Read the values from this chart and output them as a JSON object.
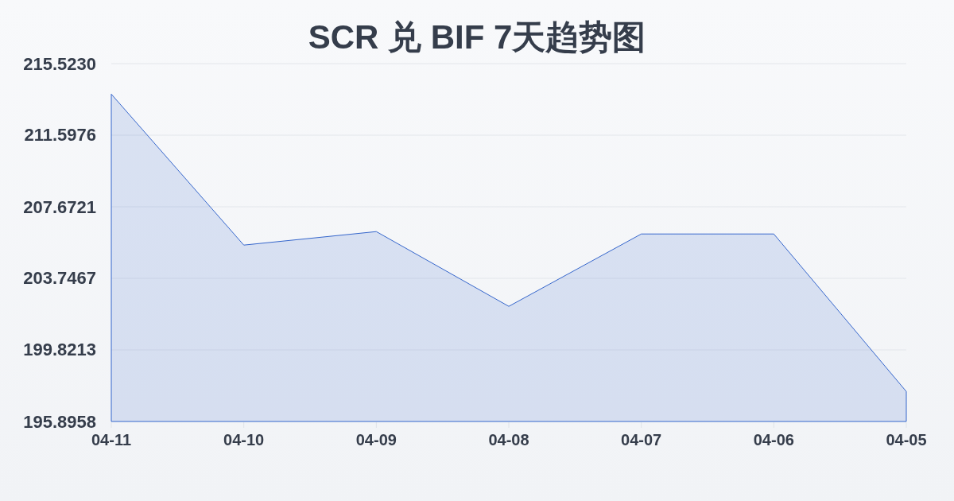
{
  "chart_data": {
    "type": "area",
    "title": "SCR 兑 BIF 7天趋势图",
    "categories": [
      "04-11",
      "04-10",
      "04-09",
      "04-08",
      "04-07",
      "04-06",
      "04-05"
    ],
    "series": [
      {
        "color": "#3566cc",
        "values": [
          213.85,
          205.57,
          206.31,
          202.21,
          206.18,
          206.18,
          197.54
        ]
      }
    ],
    "ylim": [
      195.8958,
      215.523
    ],
    "yticks": [
      195.8958,
      199.8213,
      203.7467,
      207.6721,
      211.5976,
      {
        "value": 215.523,
        "label": "215.5230"
      }
    ],
    "grid": "y"
  }
}
